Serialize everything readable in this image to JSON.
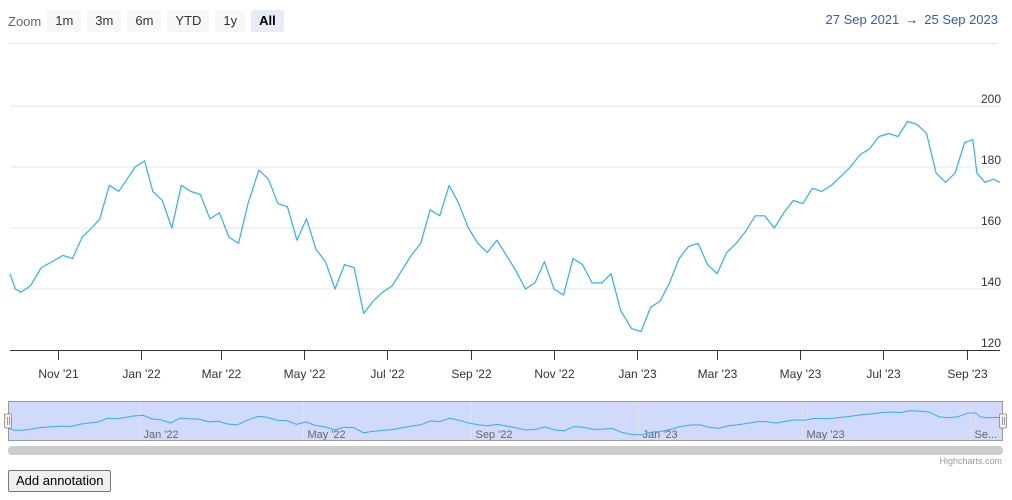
{
  "toolbar": {
    "zoom_label": "Zoom",
    "buttons": [
      "1m",
      "3m",
      "6m",
      "YTD",
      "1y",
      "All"
    ],
    "active": "All"
  },
  "range": {
    "from": "27 Sep 2021",
    "arrow": "→",
    "to": "25 Sep 2023"
  },
  "credits": "Highcharts.com",
  "annotation_button": "Add annotation",
  "colors": {
    "series": "#2caffe",
    "navigator_fill": "#ccd6f9",
    "navigator_border": "#999999",
    "scrollbar": "#cccccc"
  },
  "chart_data": {
    "type": "line",
    "title": "",
    "xlabel": "",
    "ylabel": "",
    "x_range": [
      "2021-09-27",
      "2023-09-25"
    ],
    "ylim": [
      120,
      200
    ],
    "y_ticks": [
      120,
      140,
      160,
      180,
      200
    ],
    "x_ticks": [
      {
        "date": "2021-11-01",
        "label": "Nov '21"
      },
      {
        "date": "2022-01-01",
        "label": "Jan '22"
      },
      {
        "date": "2022-03-01",
        "label": "Mar '22"
      },
      {
        "date": "2022-05-01",
        "label": "May '22"
      },
      {
        "date": "2022-07-01",
        "label": "Jul '22"
      },
      {
        "date": "2022-09-01",
        "label": "Sep '22"
      },
      {
        "date": "2022-11-01",
        "label": "Nov '22"
      },
      {
        "date": "2023-01-01",
        "label": "Jan '23"
      },
      {
        "date": "2023-03-01",
        "label": "Mar '23"
      },
      {
        "date": "2023-05-01",
        "label": "May '23"
      },
      {
        "date": "2023-07-01",
        "label": "Jul '23"
      },
      {
        "date": "2023-09-01",
        "label": "Sep '23"
      }
    ],
    "navigator_ticks": [
      {
        "date": "2022-01-01",
        "label": "Jan '22"
      },
      {
        "date": "2022-05-01",
        "label": "May '22"
      },
      {
        "date": "2022-09-01",
        "label": "Sep '22"
      },
      {
        "date": "2023-01-01",
        "label": "Jan '23"
      },
      {
        "date": "2023-05-01",
        "label": "May '23"
      },
      {
        "date": "2023-09-01",
        "label": "Se..."
      }
    ],
    "grid": true,
    "series": [
      {
        "values": [
          [
            "2021-09-27",
            145
          ],
          [
            "2021-10-01",
            140
          ],
          [
            "2021-10-05",
            139
          ],
          [
            "2021-10-12",
            141
          ],
          [
            "2021-10-20",
            147
          ],
          [
            "2021-10-28",
            149
          ],
          [
            "2021-11-05",
            151
          ],
          [
            "2021-11-12",
            150
          ],
          [
            "2021-11-19",
            157
          ],
          [
            "2021-11-26",
            160
          ],
          [
            "2021-12-02",
            163
          ],
          [
            "2021-12-09",
            174
          ],
          [
            "2021-12-16",
            172
          ],
          [
            "2021-12-22",
            176
          ],
          [
            "2021-12-28",
            180
          ],
          [
            "2022-01-04",
            182
          ],
          [
            "2022-01-10",
            172
          ],
          [
            "2022-01-17",
            169
          ],
          [
            "2022-01-24",
            160
          ],
          [
            "2022-01-31",
            174
          ],
          [
            "2022-02-07",
            172
          ],
          [
            "2022-02-14",
            171
          ],
          [
            "2022-02-21",
            163
          ],
          [
            "2022-02-28",
            165
          ],
          [
            "2022-03-07",
            157
          ],
          [
            "2022-03-14",
            155
          ],
          [
            "2022-03-21",
            168
          ],
          [
            "2022-03-29",
            179
          ],
          [
            "2022-04-05",
            176
          ],
          [
            "2022-04-12",
            168
          ],
          [
            "2022-04-19",
            167
          ],
          [
            "2022-04-26",
            156
          ],
          [
            "2022-05-03",
            163
          ],
          [
            "2022-05-10",
            153
          ],
          [
            "2022-05-17",
            149
          ],
          [
            "2022-05-24",
            140
          ],
          [
            "2022-05-31",
            148
          ],
          [
            "2022-06-07",
            147
          ],
          [
            "2022-06-14",
            132
          ],
          [
            "2022-06-21",
            136
          ],
          [
            "2022-06-28",
            139
          ],
          [
            "2022-07-05",
            141
          ],
          [
            "2022-07-12",
            146
          ],
          [
            "2022-07-19",
            151
          ],
          [
            "2022-07-26",
            155
          ],
          [
            "2022-08-02",
            166
          ],
          [
            "2022-08-09",
            164
          ],
          [
            "2022-08-16",
            174
          ],
          [
            "2022-08-23",
            168
          ],
          [
            "2022-08-30",
            160
          ],
          [
            "2022-09-06",
            155
          ],
          [
            "2022-09-13",
            152
          ],
          [
            "2022-09-20",
            156
          ],
          [
            "2022-09-27",
            151
          ],
          [
            "2022-10-04",
            146
          ],
          [
            "2022-10-11",
            140
          ],
          [
            "2022-10-18",
            142
          ],
          [
            "2022-10-25",
            149
          ],
          [
            "2022-11-01",
            140
          ],
          [
            "2022-11-08",
            138
          ],
          [
            "2022-11-15",
            150
          ],
          [
            "2022-11-22",
            148
          ],
          [
            "2022-11-29",
            142
          ],
          [
            "2022-12-06",
            142
          ],
          [
            "2022-12-13",
            145
          ],
          [
            "2022-12-20",
            133
          ],
          [
            "2022-12-28",
            127
          ],
          [
            "2023-01-04",
            126
          ],
          [
            "2023-01-11",
            134
          ],
          [
            "2023-01-18",
            136
          ],
          [
            "2023-01-25",
            142
          ],
          [
            "2023-02-01",
            150
          ],
          [
            "2023-02-08",
            154
          ],
          [
            "2023-02-15",
            155
          ],
          [
            "2023-02-22",
            148
          ],
          [
            "2023-03-01",
            145
          ],
          [
            "2023-03-08",
            152
          ],
          [
            "2023-03-15",
            155
          ],
          [
            "2023-03-22",
            159
          ],
          [
            "2023-03-29",
            164
          ],
          [
            "2023-04-05",
            164
          ],
          [
            "2023-04-12",
            160
          ],
          [
            "2023-04-19",
            165
          ],
          [
            "2023-04-26",
            169
          ],
          [
            "2023-05-03",
            168
          ],
          [
            "2023-05-10",
            173
          ],
          [
            "2023-05-17",
            172
          ],
          [
            "2023-05-24",
            174
          ],
          [
            "2023-05-31",
            177
          ],
          [
            "2023-06-07",
            180
          ],
          [
            "2023-06-14",
            184
          ],
          [
            "2023-06-21",
            186
          ],
          [
            "2023-06-28",
            190
          ],
          [
            "2023-07-05",
            191
          ],
          [
            "2023-07-12",
            190
          ],
          [
            "2023-07-19",
            195
          ],
          [
            "2023-07-26",
            194
          ],
          [
            "2023-08-02",
            191
          ],
          [
            "2023-08-09",
            178
          ],
          [
            "2023-08-16",
            175
          ],
          [
            "2023-08-23",
            178
          ],
          [
            "2023-08-30",
            188
          ],
          [
            "2023-09-05",
            189
          ],
          [
            "2023-09-08",
            178
          ],
          [
            "2023-09-14",
            175
          ],
          [
            "2023-09-20",
            176
          ],
          [
            "2023-09-25",
            175
          ]
        ]
      }
    ]
  }
}
